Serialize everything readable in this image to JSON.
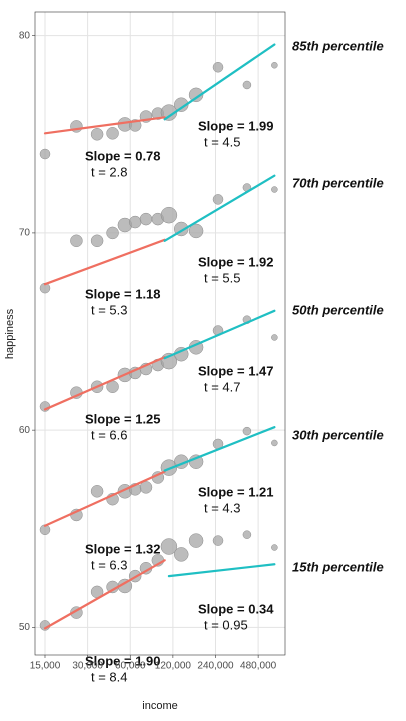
{
  "chart_data": {
    "type": "scatter",
    "x_label": "income",
    "y_label": "happiness",
    "log_x": true,
    "grid": true,
    "xlim": [
      12750,
      743000
    ],
    "xticks": [
      {
        "value": 15000,
        "label": "15,000"
      },
      {
        "value": 30000,
        "label": "30,000"
      },
      {
        "value": 60000,
        "label": "60,000"
      },
      {
        "value": 120000,
        "label": "120,000"
      },
      {
        "value": 240000,
        "label": "240,000"
      },
      {
        "value": 480000,
        "label": "480,000"
      }
    ],
    "ylim": [
      48.6,
      81.2
    ],
    "yticks": [
      50,
      60,
      70,
      80
    ],
    "point_color": "#a6a6a6",
    "x": [
      15000,
      25000,
      35000,
      45000,
      55000,
      65000,
      77500,
      94000,
      112500,
      137500,
      175000,
      250000,
      400000,
      625000
    ],
    "point_sizes": [
      5,
      6,
      6,
      6,
      7,
      6,
      6,
      6,
      8,
      7,
      7,
      5,
      4,
      3
    ],
    "series": [
      {
        "name": "85th percentile",
        "values": [
          74.0,
          75.4,
          75.0,
          75.05,
          75.5,
          75.45,
          75.9,
          76.05,
          76.1,
          76.5,
          77.0,
          78.4,
          77.5,
          78.5
        ],
        "fits": [
          {
            "color": "#ef6f61",
            "x": [
              15000,
              105000
            ],
            "y": [
              75.05,
              75.86
            ],
            "label": "Slope = 0.78",
            "t_label": "t = 2.8"
          },
          {
            "color": "#1fbfc3",
            "x": [
              105000,
              625000
            ],
            "y": [
              75.76,
              79.55
            ],
            "label": "Slope = 1.99",
            "t_label": "t = 4.5"
          }
        ]
      },
      {
        "name": "70th percentile",
        "values": [
          67.2,
          69.6,
          69.6,
          70.0,
          70.4,
          70.55,
          70.7,
          70.7,
          70.9,
          70.2,
          70.1,
          71.7,
          72.3,
          72.2
        ],
        "fits": [
          {
            "color": "#ef6f61",
            "x": [
              15000,
              105000
            ],
            "y": [
              67.4,
              69.65
            ],
            "label": "Slope = 1.18",
            "t_label": "t = 5.3"
          },
          {
            "color": "#1fbfc3",
            "x": [
              105000,
              625000
            ],
            "y": [
              69.6,
              72.9
            ],
            "label": "Slope = 1.92",
            "t_label": "t = 5.5"
          }
        ]
      },
      {
        "name": "50th percentile",
        "values": [
          61.2,
          61.9,
          62.2,
          62.2,
          62.8,
          62.9,
          63.1,
          63.3,
          63.5,
          63.85,
          64.2,
          65.05,
          65.6,
          64.7
        ],
        "fits": [
          {
            "color": "#ef6f61",
            "x": [
              15000,
              105000
            ],
            "y": [
              61.05,
              63.7
            ],
            "label": "Slope = 1.25",
            "t_label": "t = 6.6"
          },
          {
            "color": "#1fbfc3",
            "x": [
              105000,
              625000
            ],
            "y": [
              63.65,
              66.05
            ],
            "label": "Slope = 1.47",
            "t_label": "t = 4.7"
          }
        ]
      },
      {
        "name": "30th percentile",
        "values": [
          54.95,
          55.7,
          56.9,
          56.5,
          56.9,
          57.0,
          57.1,
          57.6,
          58.1,
          58.4,
          58.4,
          59.3,
          59.95,
          59.35
        ],
        "fits": [
          {
            "color": "#ef6f61",
            "x": [
              15000,
              105000
            ],
            "y": [
              55.15,
              57.9
            ],
            "label": "Slope = 1.32",
            "t_label": "t = 6.3"
          },
          {
            "color": "#1fbfc3",
            "x": [
              105000,
              625000
            ],
            "y": [
              57.95,
              60.15
            ],
            "label": "Slope = 1.21",
            "t_label": "t = 4.3"
          }
        ]
      },
      {
        "name": "15th percentile",
        "values": [
          50.1,
          50.75,
          51.8,
          52.05,
          52.1,
          52.6,
          53.0,
          53.4,
          54.1,
          53.7,
          54.4,
          54.4,
          54.7,
          54.05
        ],
        "fits": [
          {
            "color": "#ef6f61",
            "x": [
              15000,
              105000
            ],
            "y": [
              49.95,
              53.4
            ],
            "label": "Slope = 1.90",
            "t_label": "t = 8.4"
          },
          {
            "color": "#1fbfc3",
            "x": [
              112500,
              625000
            ],
            "y": [
              52.6,
              53.2
            ],
            "label": "Slope = 0.34",
            "t_label": "t = 0.95"
          }
        ]
      }
    ]
  }
}
